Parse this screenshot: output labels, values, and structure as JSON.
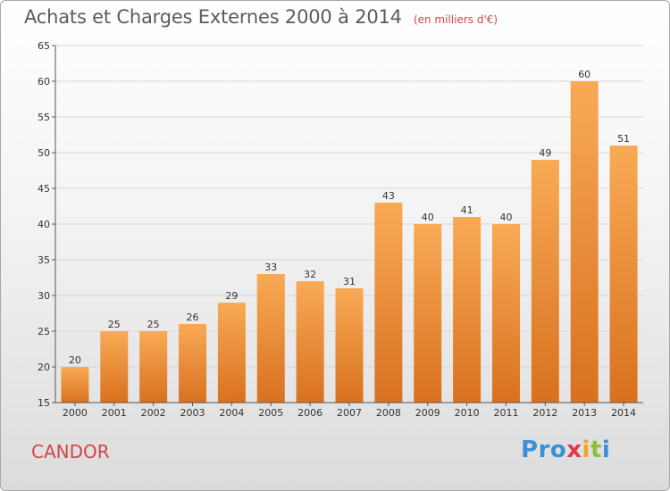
{
  "header": {
    "title": "Achats et Charges Externes 2000 à 2014",
    "subtitle": "(en milliers d'€)"
  },
  "footer": {
    "commune": "CANDOR",
    "logo_letters": [
      "P",
      "r",
      "o",
      "x",
      "i",
      "t",
      "i"
    ],
    "logo_colors": [
      "#3b8fd4",
      "#3b8fd4",
      "#3b8fd4",
      "#e2384b",
      "#f0a22e",
      "#8cbf3f",
      "#3b8fd4"
    ]
  },
  "colors": {
    "bar_top": "#f9aa55",
    "bar_bottom": "#d8711f",
    "axis": "#555555",
    "grid": "#d6d6d6",
    "label": "#333333"
  },
  "chart_data": {
    "type": "bar",
    "categories": [
      "2000",
      "2001",
      "2002",
      "2003",
      "2004",
      "2005",
      "2006",
      "2007",
      "2008",
      "2009",
      "2010",
      "2011",
      "2012",
      "2013",
      "2014"
    ],
    "values": [
      20,
      25,
      25,
      26,
      29,
      33,
      32,
      31,
      43,
      40,
      41,
      40,
      49,
      60,
      51
    ],
    "data_labels": [
      "20",
      "25",
      "25",
      "26",
      "29",
      "33",
      "32",
      "31",
      "43",
      "40",
      "41",
      "40",
      "49",
      "60",
      "51"
    ],
    "ylim": [
      15,
      65
    ],
    "yticks": [
      15,
      20,
      25,
      30,
      35,
      40,
      45,
      50,
      55,
      60,
      65
    ],
    "ytick_labels": [
      "15",
      "20",
      "25",
      "30",
      "35",
      "40",
      "45",
      "50",
      "55",
      "60",
      "65"
    ],
    "grid": true,
    "xlabel": "",
    "ylabel": ""
  }
}
